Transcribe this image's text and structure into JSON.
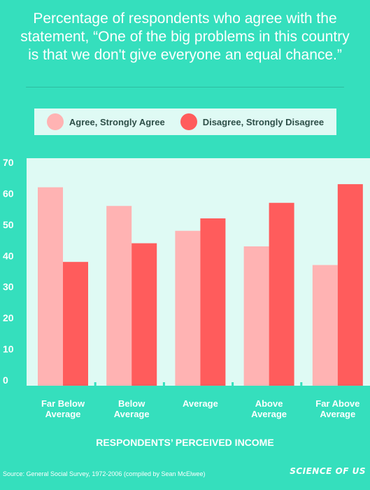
{
  "chart_data": {
    "type": "bar",
    "title_lines": [
      "Percentage of respondents who agree with the",
      "statement, “One of the big problems in this country",
      "is that we don't give everyone an equal chance.”"
    ],
    "categories": [
      [
        "Far Below",
        "Average"
      ],
      [
        "Below",
        "Average"
      ],
      [
        "Average"
      ],
      [
        "Above",
        "Average"
      ],
      [
        "Far Above",
        "Average"
      ]
    ],
    "series": [
      {
        "name": "Agree, Strongly Agree",
        "color": "#ffb3b3",
        "values": [
          62,
          56,
          48,
          43,
          37
        ]
      },
      {
        "name": "Disagree, Strongly Disagree",
        "color": "#ff5c5c",
        "values": [
          38,
          44,
          52,
          57,
          63
        ]
      }
    ],
    "xlabel": "RESPONDENTS’ PERCEIVED INCOME",
    "ylim": [
      0,
      70
    ],
    "yticks": [
      0,
      10,
      20,
      30,
      40,
      50,
      60,
      70
    ],
    "plot_background": "#dffaf4",
    "grid": false,
    "legend_position": "top"
  },
  "source": "Source: General Social Survey, 1972-2006 (compiled by Sean McElwee)",
  "logo_text": "SCIENCE OF US"
}
